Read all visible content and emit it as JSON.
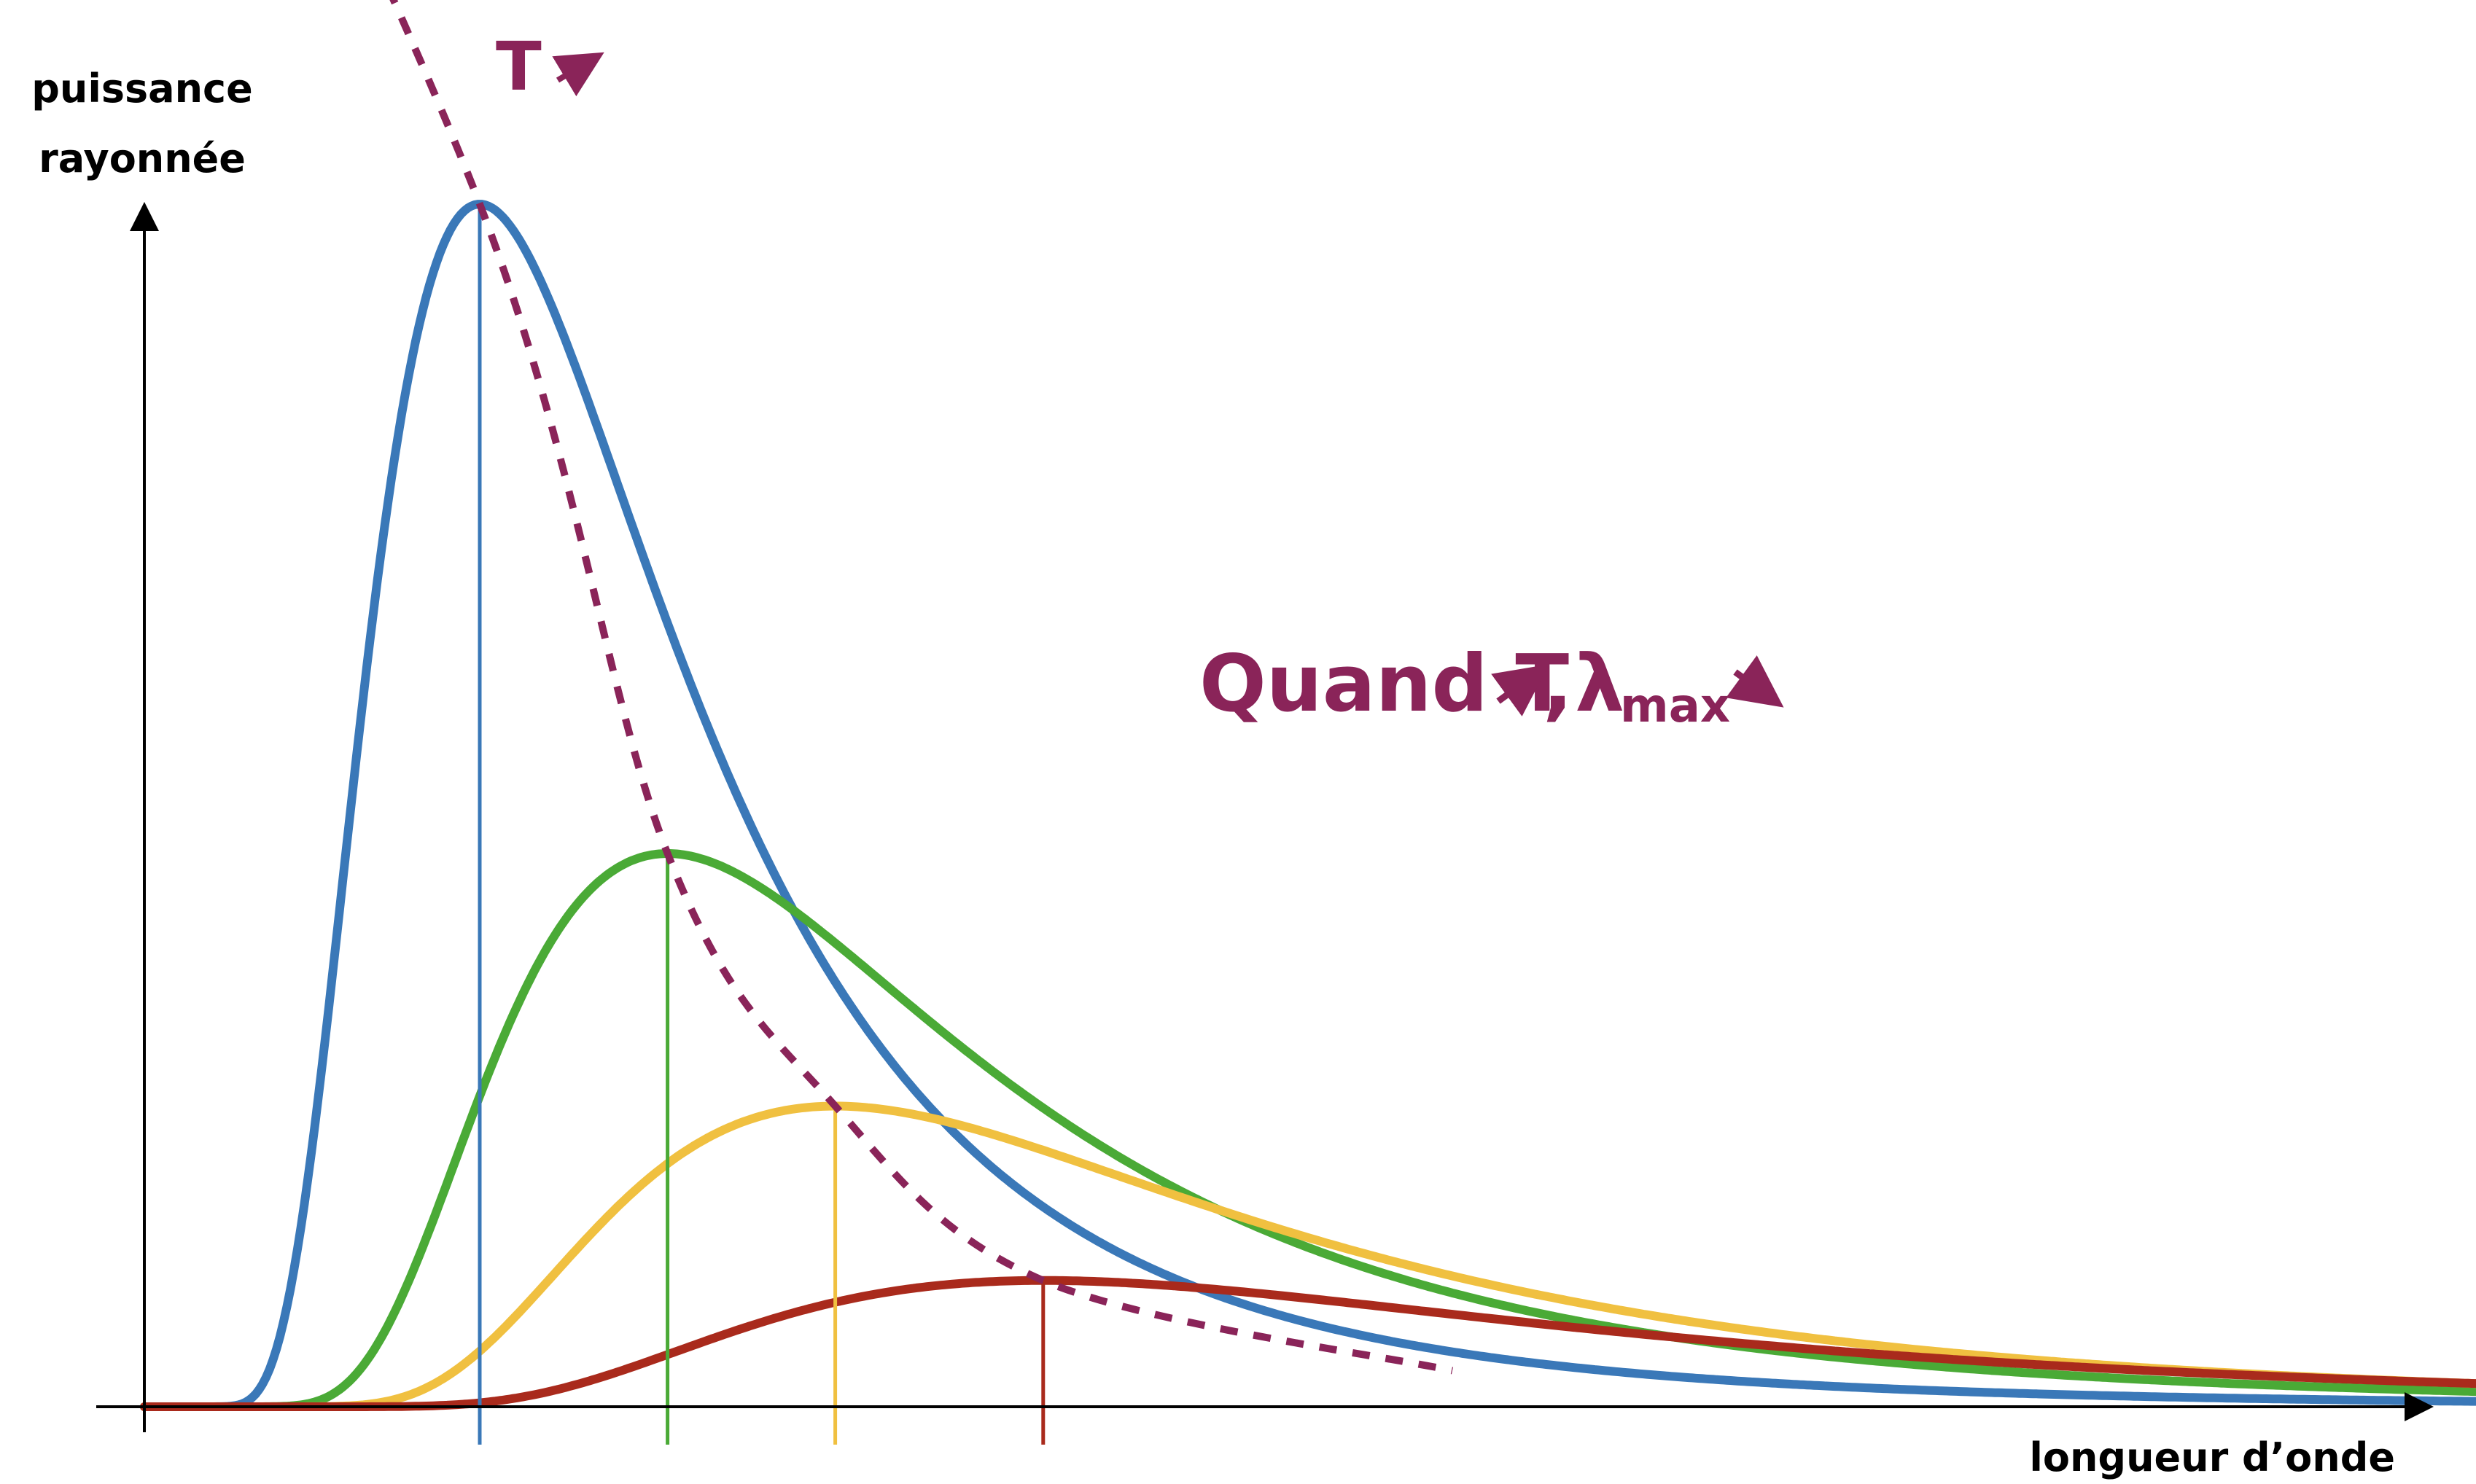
{
  "chart_data": {
    "type": "line",
    "xlabel": "longueur d’onde",
    "ylabel_line1": "puissance",
    "ylabel_line2": "rayonnée",
    "grid": false,
    "legend": "none",
    "series": [
      {
        "color": "#3a78b8",
        "peak_x": 1.0,
        "peak_y": 1.0
      },
      {
        "color": "#4aaa36",
        "peak_x": 1.56,
        "peak_y": 0.46
      },
      {
        "color": "#f0c040",
        "peak_x": 2.06,
        "peak_y": 0.25
      },
      {
        "color": "#a92a1c",
        "peak_x": 2.68,
        "peak_y": 0.105
      }
    ],
    "peak_trace": {
      "color": "#8a2459",
      "label": "T"
    },
    "annotation": {
      "color": "#8a2459",
      "text_main": "Quand T",
      "text_comma": ",",
      "text_lambda": "λ",
      "text_sub": "max"
    }
  }
}
